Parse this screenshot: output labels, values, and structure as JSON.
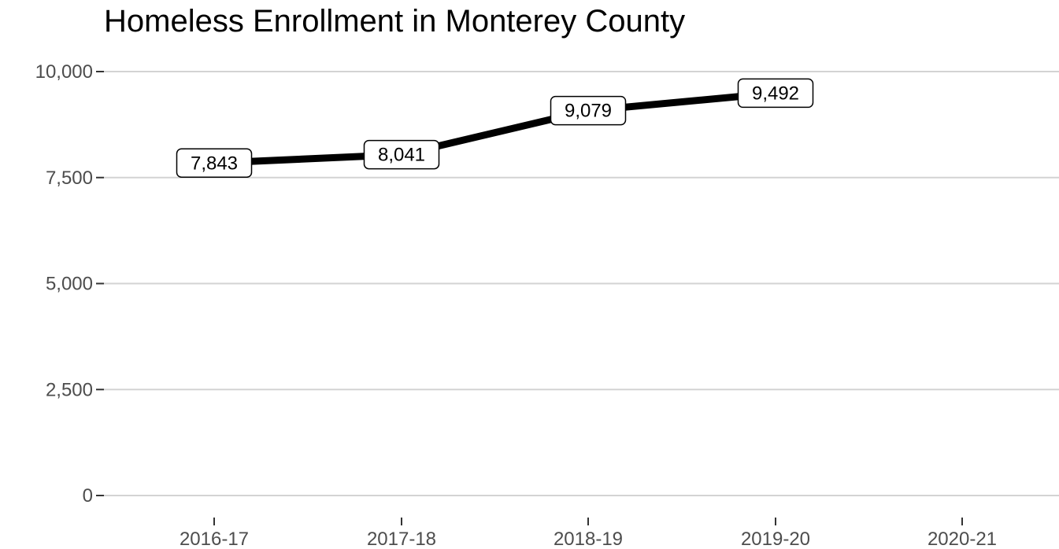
{
  "chart_data": {
    "type": "line",
    "title": "Homeless Enrollment in Monterey County",
    "xlabel": "",
    "ylabel": "",
    "categories": [
      "2016-17",
      "2017-18",
      "2018-19",
      "2019-20",
      "2020-21"
    ],
    "series": [
      {
        "values": [
          7843,
          8041,
          9079,
          9492,
          null
        ],
        "data_labels": [
          "7,843",
          "8,041",
          "9,079",
          "9,492"
        ],
        "color": "#000000"
      }
    ],
    "ylim": [
      0,
      10000
    ],
    "y_ticks": [
      0,
      2500,
      5000,
      7500,
      10000
    ],
    "y_tick_labels": [
      "0",
      "2,500",
      "5,000",
      "7,500",
      "10,000"
    ],
    "grid": true,
    "legend": "none"
  }
}
